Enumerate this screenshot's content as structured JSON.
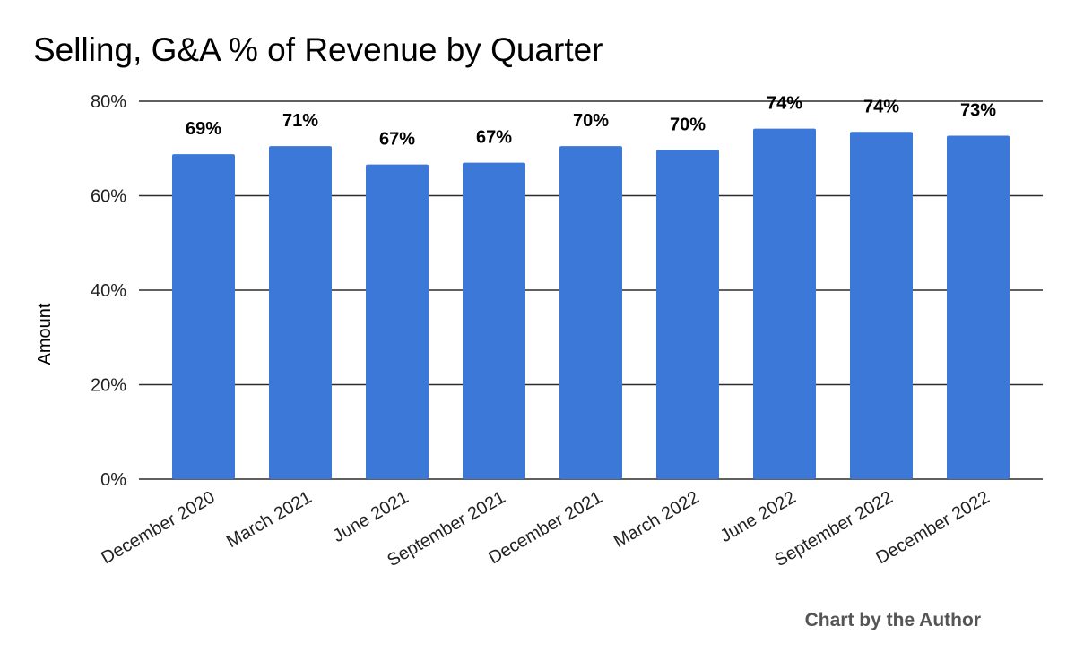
{
  "chart_data": {
    "type": "bar",
    "title": "Selling, G&A % of Revenue by Quarter",
    "xlabel": "",
    "ylabel": "Amount",
    "categories": [
      "December 2020",
      "March 2021",
      "June 2021",
      "September 2021",
      "December 2021",
      "March 2022",
      "June 2022",
      "September 2022",
      "December 2022"
    ],
    "values": [
      68.8,
      70.5,
      66.6,
      67.0,
      70.5,
      69.7,
      74.2,
      73.5,
      72.7
    ],
    "data_labels": [
      "69%",
      "71%",
      "67%",
      "67%",
      "70%",
      "70%",
      "74%",
      "74%",
      "73%"
    ],
    "ylim": [
      0,
      80
    ],
    "yticks": [
      0,
      20,
      40,
      60,
      80
    ],
    "ytick_labels": [
      "0%",
      "20%",
      "40%",
      "60%",
      "80%"
    ],
    "grid": true,
    "legend": "none",
    "bar_color": "#3c78d8",
    "credit": "Chart by the Author"
  }
}
